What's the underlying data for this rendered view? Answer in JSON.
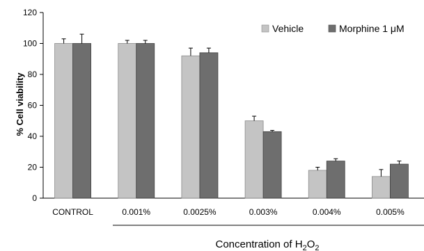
{
  "chart_data": {
    "type": "bar",
    "categories": [
      "CONTROL",
      "0.001%",
      "0.0025%",
      "0.003%",
      "0.004%",
      "0.005%"
    ],
    "series": [
      {
        "name": "Vehicle",
        "color": "#c4c4c4",
        "values": [
          100,
          100,
          92,
          50,
          18,
          14
        ],
        "errors": [
          3,
          2,
          5,
          3,
          2,
          4.5
        ]
      },
      {
        "name": "Morphine 1 μM",
        "color": "#6e6e6e",
        "values": [
          100,
          100,
          94,
          43,
          24,
          22
        ],
        "errors": [
          6,
          2,
          3,
          0.8,
          1.5,
          2
        ]
      }
    ],
    "ylabel": "% Cell viability",
    "xlabel": {
      "text": "Concentration of H",
      "sub1": "2",
      "mid": "O",
      "sub2": "2"
    },
    "ylim": [
      0,
      120
    ],
    "yticks": [
      0,
      20,
      40,
      60,
      80,
      100,
      120
    ],
    "grid": false,
    "legend_position": "top-right"
  }
}
